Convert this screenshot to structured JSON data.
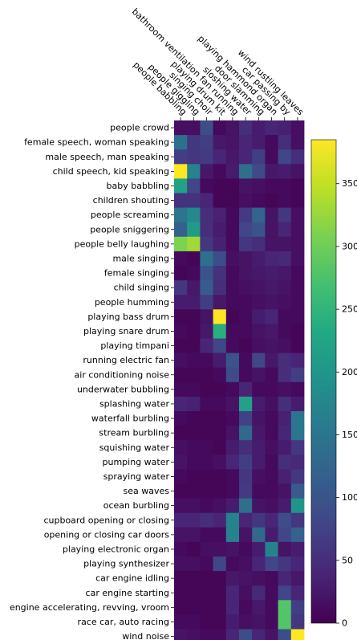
{
  "chart_data": {
    "type": "heatmap",
    "title": "",
    "xlabel": "",
    "ylabel": "",
    "colormap": "viridis",
    "colorbar": {
      "range": [
        0,
        385
      ],
      "ticks": [
        0,
        50,
        100,
        150,
        200,
        250,
        300,
        350
      ],
      "tick_labels": [
        "0",
        "50",
        "100",
        "150",
        "200",
        "250",
        "300",
        "350"
      ]
    },
    "x_categories": [
      "people babbling",
      "people giggling",
      "singing choir",
      "playing drum kit",
      "bathroom ventilation fan running",
      "sloshing water",
      "door slamming",
      "playing hammond organ",
      "car passing by",
      "wind rustling leaves"
    ],
    "y_categories": [
      "people crowd",
      "female speech, woman speaking",
      "male speech, man speaking",
      "child speech, kid speaking",
      "baby babbling",
      "children shouting",
      "people screaming",
      "people sniggering",
      "people belly laughing",
      "male singing",
      "female singing",
      "child singing",
      "people humming",
      "playing bass drum",
      "playing snare drum",
      "playing timpani",
      "running electric fan",
      "air conditioning noise",
      "underwater bubbling",
      "splashing water",
      "waterfall burbling",
      "stream burbling",
      "squishing water",
      "pumping water",
      "spraying water",
      "sea waves",
      "ocean burbling",
      "cupboard opening or closing",
      "opening or closing car doors",
      "playing electronic organ",
      "playing synthesizer",
      "car engine idling",
      "car engine starting",
      "engine accelerating, revving, vroom",
      "race car, auto racing",
      "wind noise"
    ],
    "values": [
      [
        15,
        15,
        90,
        10,
        20,
        50,
        30,
        40,
        35,
        15
      ],
      [
        140,
        60,
        70,
        25,
        20,
        40,
        30,
        10,
        50,
        15
      ],
      [
        70,
        60,
        65,
        40,
        25,
        40,
        70,
        10,
        80,
        50
      ],
      [
        385,
        170,
        25,
        10,
        30,
        140,
        85,
        25,
        30,
        20
      ],
      [
        220,
        80,
        10,
        5,
        5,
        20,
        15,
        10,
        10,
        5
      ],
      [
        55,
        55,
        40,
        5,
        5,
        15,
        10,
        5,
        10,
        5
      ],
      [
        150,
        180,
        50,
        35,
        10,
        65,
        125,
        20,
        60,
        15
      ],
      [
        120,
        210,
        50,
        30,
        10,
        80,
        100,
        20,
        40,
        15
      ],
      [
        310,
        330,
        60,
        35,
        10,
        60,
        50,
        20,
        20,
        15
      ],
      [
        10,
        5,
        140,
        90,
        15,
        20,
        30,
        40,
        45,
        15
      ],
      [
        5,
        10,
        100,
        55,
        10,
        20,
        25,
        30,
        25,
        10
      ],
      [
        60,
        25,
        110,
        50,
        10,
        15,
        20,
        25,
        20,
        10
      ],
      [
        30,
        30,
        70,
        25,
        10,
        10,
        15,
        20,
        15,
        10
      ],
      [
        5,
        5,
        20,
        385,
        5,
        10,
        30,
        40,
        10,
        10
      ],
      [
        10,
        5,
        25,
        240,
        10,
        10,
        20,
        25,
        10,
        5
      ],
      [
        5,
        5,
        40,
        80,
        10,
        5,
        15,
        20,
        15,
        5
      ],
      [
        15,
        10,
        10,
        30,
        100,
        10,
        80,
        25,
        50,
        40
      ],
      [
        5,
        5,
        5,
        10,
        90,
        10,
        20,
        10,
        50,
        70
      ],
      [
        10,
        10,
        5,
        5,
        10,
        40,
        10,
        10,
        15,
        10
      ],
      [
        40,
        35,
        10,
        10,
        20,
        220,
        30,
        15,
        50,
        30
      ],
      [
        10,
        5,
        5,
        5,
        10,
        75,
        20,
        10,
        35,
        150
      ],
      [
        5,
        5,
        5,
        5,
        20,
        130,
        25,
        10,
        40,
        150
      ],
      [
        15,
        10,
        10,
        5,
        30,
        50,
        30,
        15,
        30,
        60
      ],
      [
        20,
        10,
        10,
        15,
        40,
        70,
        30,
        10,
        50,
        45
      ],
      [
        10,
        5,
        5,
        5,
        10,
        60,
        15,
        10,
        35,
        60
      ],
      [
        5,
        5,
        5,
        5,
        10,
        65,
        10,
        10,
        20,
        110
      ],
      [
        15,
        15,
        10,
        15,
        30,
        140,
        20,
        15,
        30,
        200
      ],
      [
        40,
        40,
        50,
        40,
        170,
        40,
        60,
        40,
        90,
        60
      ],
      [
        20,
        20,
        10,
        10,
        170,
        20,
        130,
        30,
        80,
        120
      ],
      [
        10,
        5,
        15,
        15,
        20,
        10,
        30,
        170,
        20,
        30
      ],
      [
        15,
        15,
        10,
        80,
        10,
        15,
        40,
        80,
        60,
        40
      ],
      [
        5,
        5,
        5,
        5,
        25,
        20,
        15,
        10,
        40,
        25
      ],
      [
        5,
        5,
        5,
        5,
        40,
        15,
        45,
        10,
        80,
        40
      ],
      [
        5,
        5,
        5,
        5,
        40,
        10,
        25,
        10,
        280,
        70
      ],
      [
        10,
        10,
        5,
        5,
        30,
        15,
        20,
        10,
        280,
        60
      ],
      [
        20,
        15,
        10,
        10,
        40,
        90,
        40,
        20,
        90,
        385
      ]
    ]
  }
}
